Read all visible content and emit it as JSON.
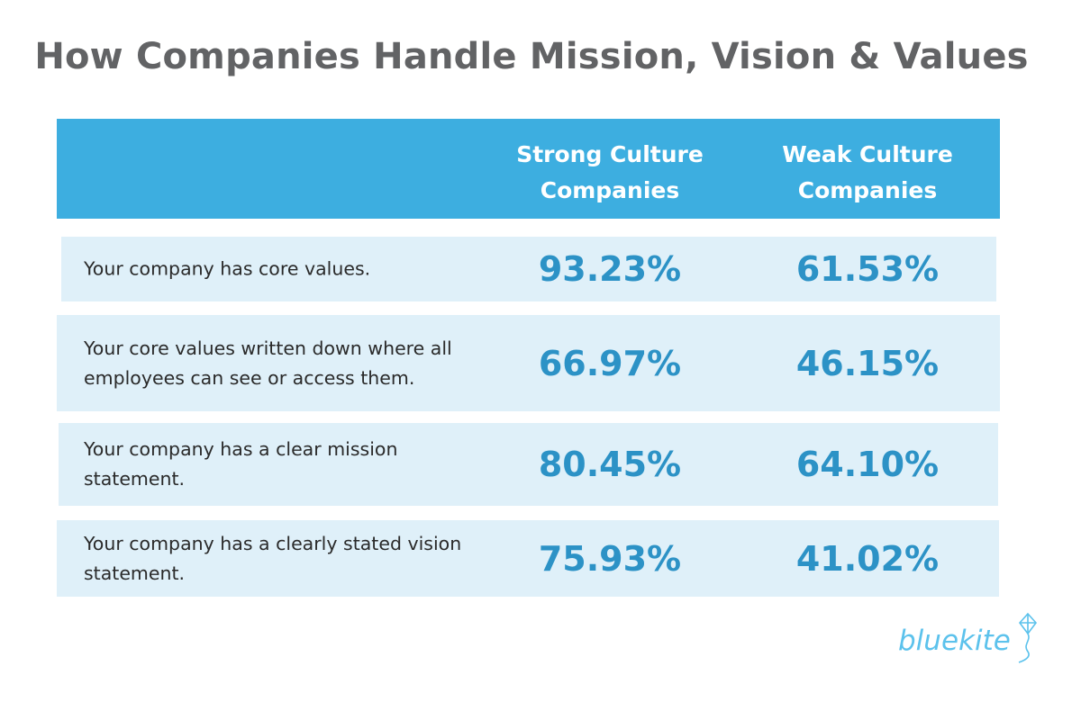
{
  "title": "How Companies Handle Mission, Vision & Values",
  "columns": {
    "strong": "Strong Culture Companies",
    "weak": "Weak Culture Companies"
  },
  "rows": [
    {
      "label": "Your company has core values.",
      "strong": "93.23%",
      "weak": "61.53%"
    },
    {
      "label": "Your core values written down where all employees can see or access them.",
      "strong": "66.97%",
      "weak": "46.15%"
    },
    {
      "label": "Your company has a clear mission statement.",
      "strong": "80.45%",
      "weak": "64.10%"
    },
    {
      "label": "Your company has a clearly stated vision statement.",
      "strong": "75.93%",
      "weak": "41.02%"
    }
  ],
  "logo": {
    "text": "bluekite",
    "icon": "kite-icon"
  },
  "colors": {
    "header": "#3daee0",
    "row": "#dff0f9",
    "value": "#2c92c6",
    "title": "#626365",
    "logo": "#5cc2ec"
  },
  "chart_data": {
    "type": "table",
    "title": "How Companies Handle Mission, Vision & Values",
    "columns": [
      "",
      "Strong Culture Companies",
      "Weak Culture Companies"
    ],
    "rows": [
      [
        "Your company has core values.",
        93.23,
        61.53
      ],
      [
        "Your core values written down where all employees can see or access them.",
        66.97,
        46.15
      ],
      [
        "Your company has a clear mission statement.",
        80.45,
        64.1
      ],
      [
        "Your company has a clearly stated vision statement.",
        75.93,
        41.02
      ]
    ],
    "series": [
      {
        "name": "Strong Culture Companies",
        "values": [
          93.23,
          66.97,
          80.45,
          75.93
        ]
      },
      {
        "name": "Weak Culture Companies",
        "values": [
          61.53,
          46.15,
          64.1,
          41.02
        ]
      }
    ],
    "unit": "%"
  }
}
